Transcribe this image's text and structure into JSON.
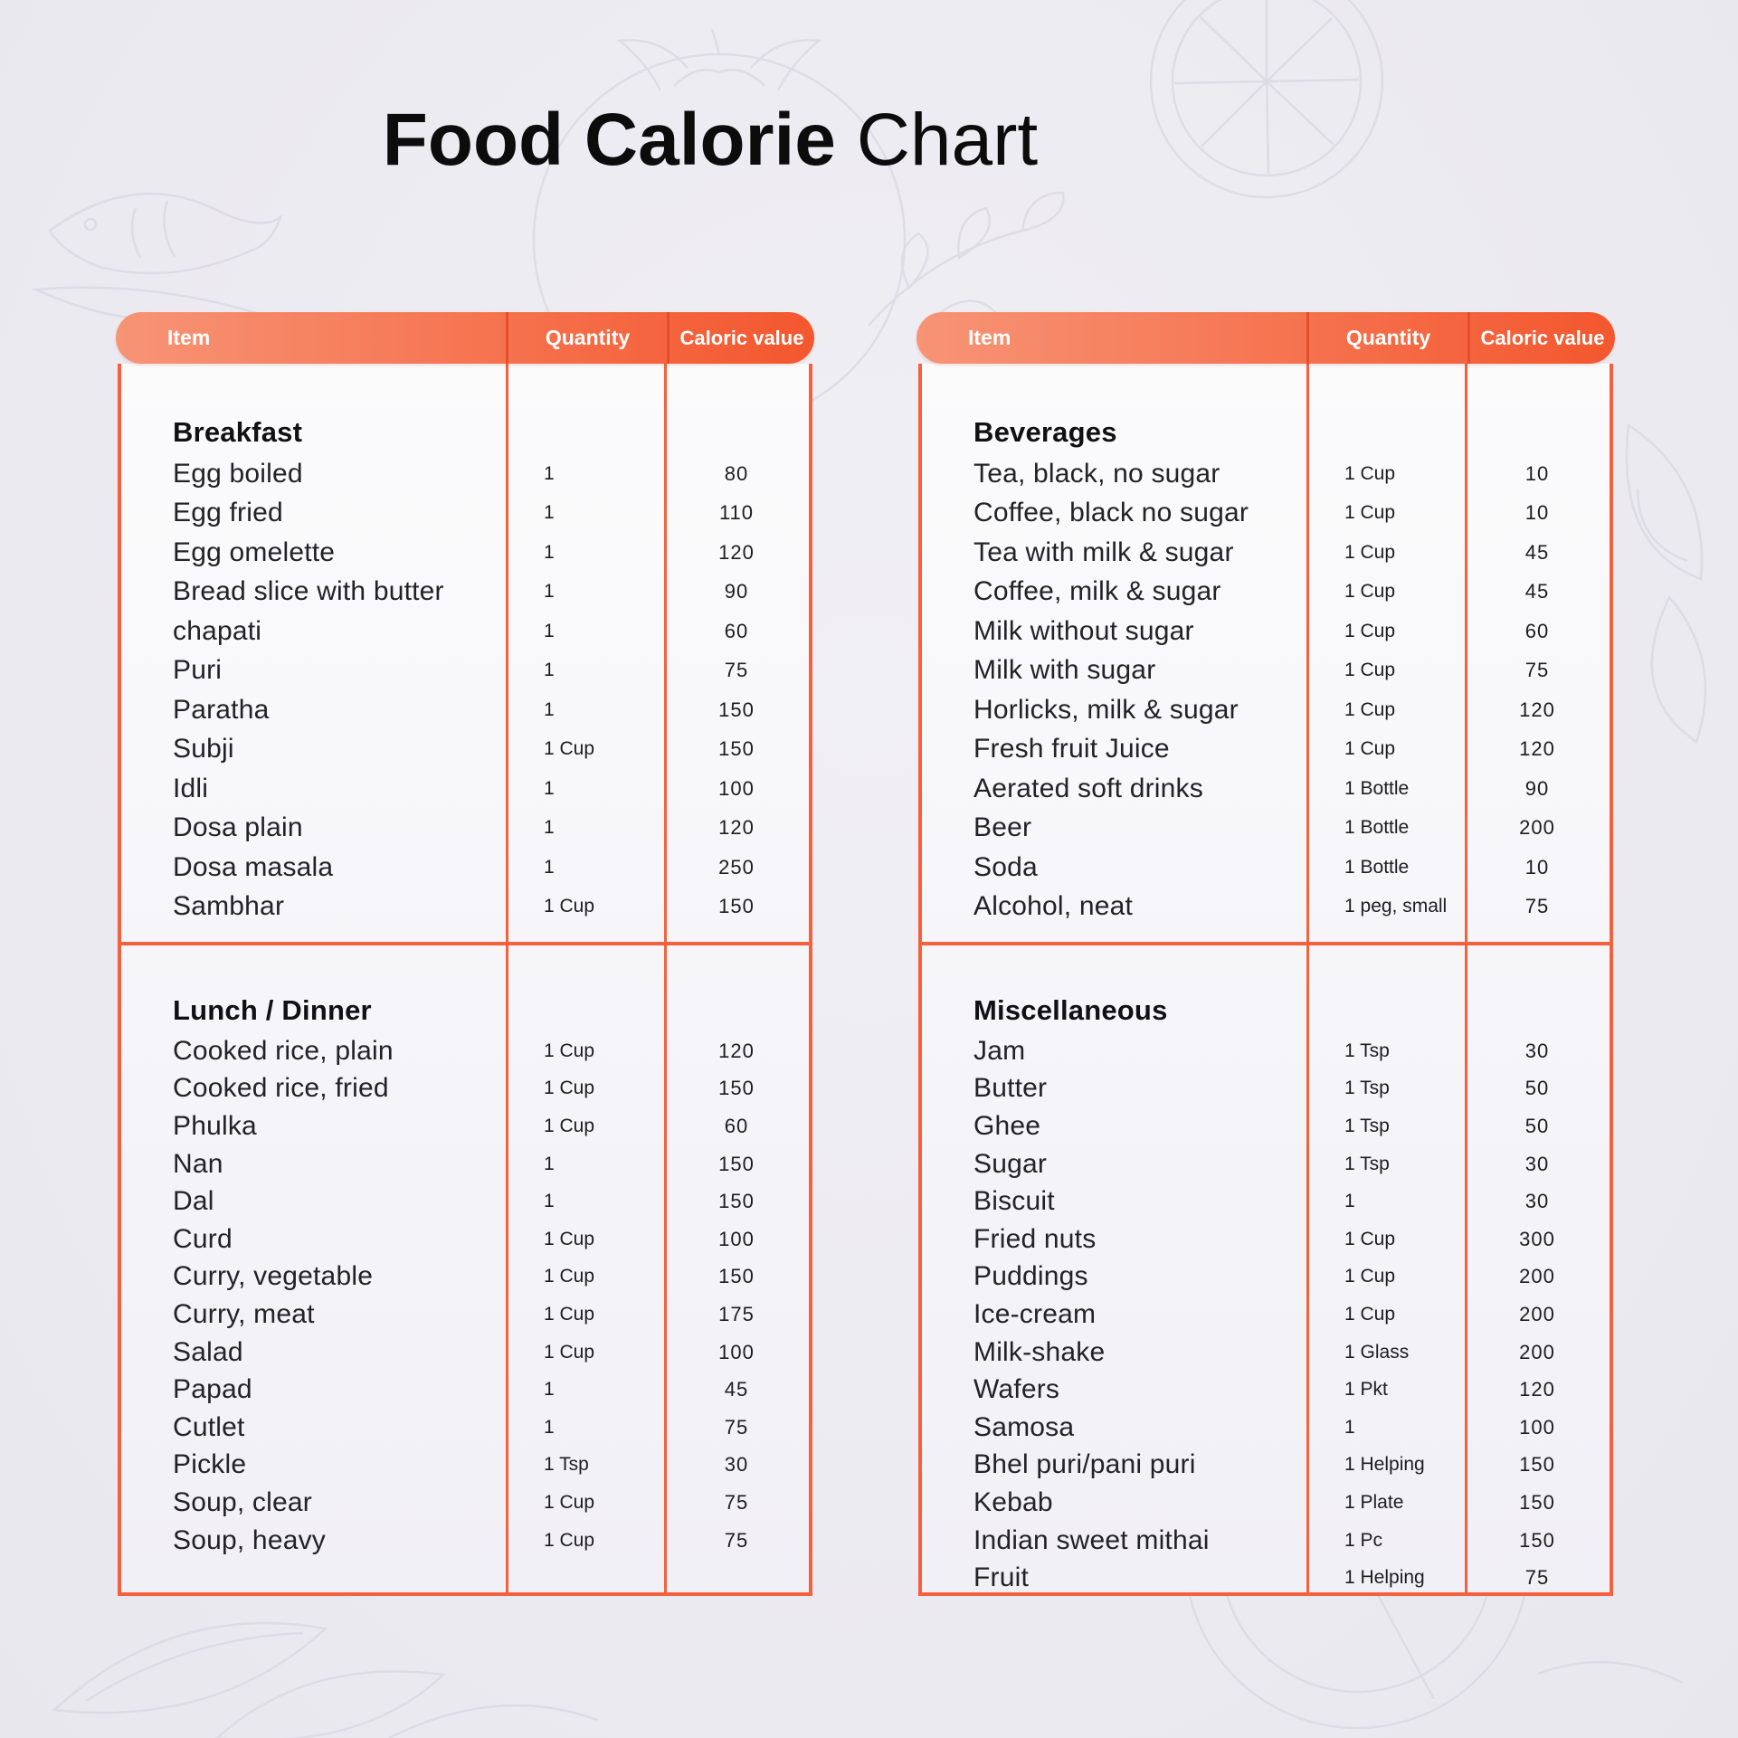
{
  "title": {
    "bold": "Food Calorie",
    "regular": "Chart"
  },
  "colors": {
    "accent": "#F4613C",
    "header_gradient_start": "#F79476",
    "header_gradient_end": "#F4572E",
    "page_background": "#ECEBF1",
    "header_text": "#FFFFFF",
    "body_text": "#1D1D1F"
  },
  "chart_data": [
    {
      "type": "table",
      "title": "Food Calorie Chart (left table)",
      "columns": [
        "Item",
        "Quantity",
        "Caloric value"
      ],
      "sections": [
        {
          "heading": "Breakfast",
          "rows": [
            [
              "Egg boiled",
              "1",
              "80"
            ],
            [
              "Egg fried",
              "1",
              "110"
            ],
            [
              "Egg omelette",
              "1",
              "120"
            ],
            [
              "Bread slice with butter",
              "1",
              "90"
            ],
            [
              "chapati",
              "1",
              "60"
            ],
            [
              "Puri",
              "1",
              "75"
            ],
            [
              "Paratha",
              "1",
              "150"
            ],
            [
              "Subji",
              "1 Cup",
              "150"
            ],
            [
              "Idli",
              "1",
              "100"
            ],
            [
              "Dosa plain",
              "1",
              "120"
            ],
            [
              "Dosa masala",
              "1",
              "250"
            ],
            [
              "Sambhar",
              "1 Cup",
              "150"
            ]
          ]
        },
        {
          "heading": "Lunch / Dinner",
          "rows": [
            [
              "Cooked rice, plain",
              "1 Cup",
              "120"
            ],
            [
              "Cooked rice, fried",
              "1 Cup",
              "150"
            ],
            [
              "Phulka",
              "1 Cup",
              "60"
            ],
            [
              "Nan",
              "1",
              "150"
            ],
            [
              "Dal",
              "1",
              "150"
            ],
            [
              "Curd",
              "1 Cup",
              "100"
            ],
            [
              "Curry, vegetable",
              "1 Cup",
              "150"
            ],
            [
              "Curry, meat",
              "1 Cup",
              "175"
            ],
            [
              "Salad",
              "1 Cup",
              "100"
            ],
            [
              "Papad",
              "1",
              "45"
            ],
            [
              "Cutlet",
              "1",
              "75"
            ],
            [
              "Pickle",
              "1 Tsp",
              "30"
            ],
            [
              "Soup, clear",
              "1 Cup",
              "75"
            ],
            [
              "Soup, heavy",
              "1 Cup",
              "75"
            ]
          ]
        }
      ]
    },
    {
      "type": "table",
      "title": "Food Calorie Chart (right table)",
      "columns": [
        "Item",
        "Quantity",
        "Caloric value"
      ],
      "sections": [
        {
          "heading": "Beverages",
          "rows": [
            [
              "Tea, black, no sugar",
              "1 Cup",
              "10"
            ],
            [
              "Coffee, black no sugar",
              "1 Cup",
              "10"
            ],
            [
              "Tea with milk & sugar",
              "1 Cup",
              "45"
            ],
            [
              "Coffee, milk & sugar",
              "1 Cup",
              "45"
            ],
            [
              "Milk without sugar",
              "1 Cup",
              "60"
            ],
            [
              "Milk with sugar",
              "1 Cup",
              "75"
            ],
            [
              "Horlicks, milk & sugar",
              "1 Cup",
              "120"
            ],
            [
              "Fresh fruit Juice",
              "1 Cup",
              "120"
            ],
            [
              "Aerated soft drinks",
              "1 Bottle",
              "90"
            ],
            [
              "Beer",
              "1 Bottle",
              "200"
            ],
            [
              "Soda",
              "1 Bottle",
              "10"
            ],
            [
              "Alcohol, neat",
              "1 peg, small",
              "75"
            ]
          ]
        },
        {
          "heading": "Miscellaneous",
          "rows": [
            [
              "Jam",
              "1 Tsp",
              "30"
            ],
            [
              "Butter",
              "1 Tsp",
              "50"
            ],
            [
              "Ghee",
              "1 Tsp",
              "50"
            ],
            [
              "Sugar",
              "1 Tsp",
              "30"
            ],
            [
              "Biscuit",
              "1",
              "30"
            ],
            [
              "Fried nuts",
              "1 Cup",
              "300"
            ],
            [
              "Puddings",
              "1 Cup",
              "200"
            ],
            [
              "Ice-cream",
              "1 Cup",
              "200"
            ],
            [
              "Milk-shake",
              "1 Glass",
              "200"
            ],
            [
              "Wafers",
              "1 Pkt",
              "120"
            ],
            [
              "Samosa",
              "1",
              "100"
            ],
            [
              "Bhel puri/pani puri",
              "1 Helping",
              "150"
            ],
            [
              "Kebab",
              "1 Plate",
              "150"
            ],
            [
              "Indian sweet mithai",
              "1 Pc",
              "150"
            ],
            [
              "Fruit",
              "1 Helping",
              "75"
            ]
          ]
        }
      ]
    }
  ]
}
